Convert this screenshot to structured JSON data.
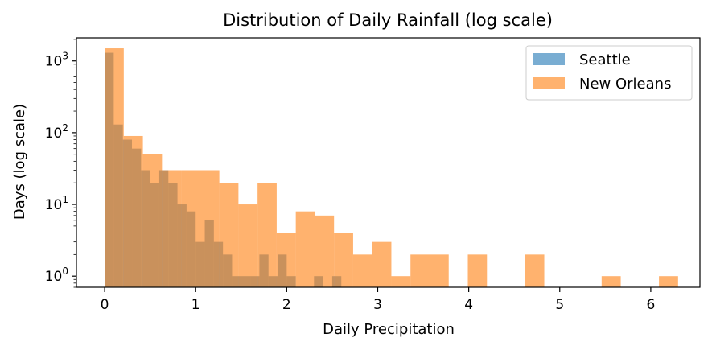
{
  "chart_data": {
    "type": "bar",
    "title": "Distribution of Daily Rainfall (log scale)",
    "xlabel": "Daily Precipitation",
    "ylabel": "Days (log scale)",
    "xlim": [
      -0.31,
      6.54
    ],
    "ylim": [
      0.7,
      2100
    ],
    "yscale": "log",
    "grid": false,
    "legend_position": "top-right",
    "xticks": [
      0,
      1,
      2,
      3,
      4,
      5,
      6
    ],
    "xtick_labels": [
      "0",
      "1",
      "2",
      "3",
      "4",
      "5",
      "6"
    ],
    "yticks": [
      1,
      10,
      100,
      1000
    ],
    "ytick_labels": [
      {
        "base": "10",
        "exp": "0"
      },
      {
        "base": "10",
        "exp": "1"
      },
      {
        "base": "10",
        "exp": "2"
      },
      {
        "base": "10",
        "exp": "3"
      }
    ],
    "series": [
      {
        "name": "Seattle",
        "color": "#1f77b4",
        "alpha": 0.6,
        "bins": [
          [
            0.0,
            0.1,
            1300
          ],
          [
            0.1,
            0.2,
            130
          ],
          [
            0.2,
            0.3,
            80
          ],
          [
            0.3,
            0.4,
            60
          ],
          [
            0.4,
            0.5,
            30
          ],
          [
            0.5,
            0.6,
            20
          ],
          [
            0.6,
            0.7,
            30
          ],
          [
            0.7,
            0.8,
            20
          ],
          [
            0.8,
            0.9,
            10
          ],
          [
            0.9,
            1.0,
            8
          ],
          [
            1.0,
            1.1,
            3
          ],
          [
            1.1,
            1.2,
            6
          ],
          [
            1.2,
            1.3,
            3
          ],
          [
            1.3,
            1.4,
            2
          ],
          [
            1.4,
            1.5,
            1
          ],
          [
            1.5,
            1.6,
            1
          ],
          [
            1.6,
            1.7,
            1
          ],
          [
            1.7,
            1.8,
            2
          ],
          [
            1.8,
            1.9,
            1
          ],
          [
            1.9,
            2.0,
            2
          ],
          [
            2.0,
            2.1,
            1
          ],
          [
            2.3,
            2.4,
            1
          ],
          [
            2.5,
            2.6,
            1
          ]
        ]
      },
      {
        "name": "New Orleans",
        "color": "#ff7f0e",
        "alpha": 0.6,
        "bins": [
          [
            0.0,
            0.21,
            1500
          ],
          [
            0.21,
            0.42,
            90
          ],
          [
            0.42,
            0.63,
            50
          ],
          [
            0.63,
            0.84,
            30
          ],
          [
            0.84,
            1.26,
            30
          ],
          [
            1.26,
            1.47,
            20
          ],
          [
            1.47,
            1.68,
            10
          ],
          [
            1.68,
            1.89,
            20
          ],
          [
            1.89,
            2.1,
            4
          ],
          [
            2.1,
            2.31,
            8
          ],
          [
            2.31,
            2.52,
            7
          ],
          [
            2.52,
            2.73,
            4
          ],
          [
            2.73,
            2.94,
            2
          ],
          [
            2.94,
            3.15,
            3
          ],
          [
            3.15,
            3.36,
            1
          ],
          [
            3.36,
            3.78,
            2
          ],
          [
            3.99,
            4.2,
            2
          ],
          [
            4.62,
            4.83,
            2
          ],
          [
            5.46,
            5.67,
            1
          ],
          [
            6.09,
            6.3,
            1
          ]
        ]
      }
    ]
  }
}
